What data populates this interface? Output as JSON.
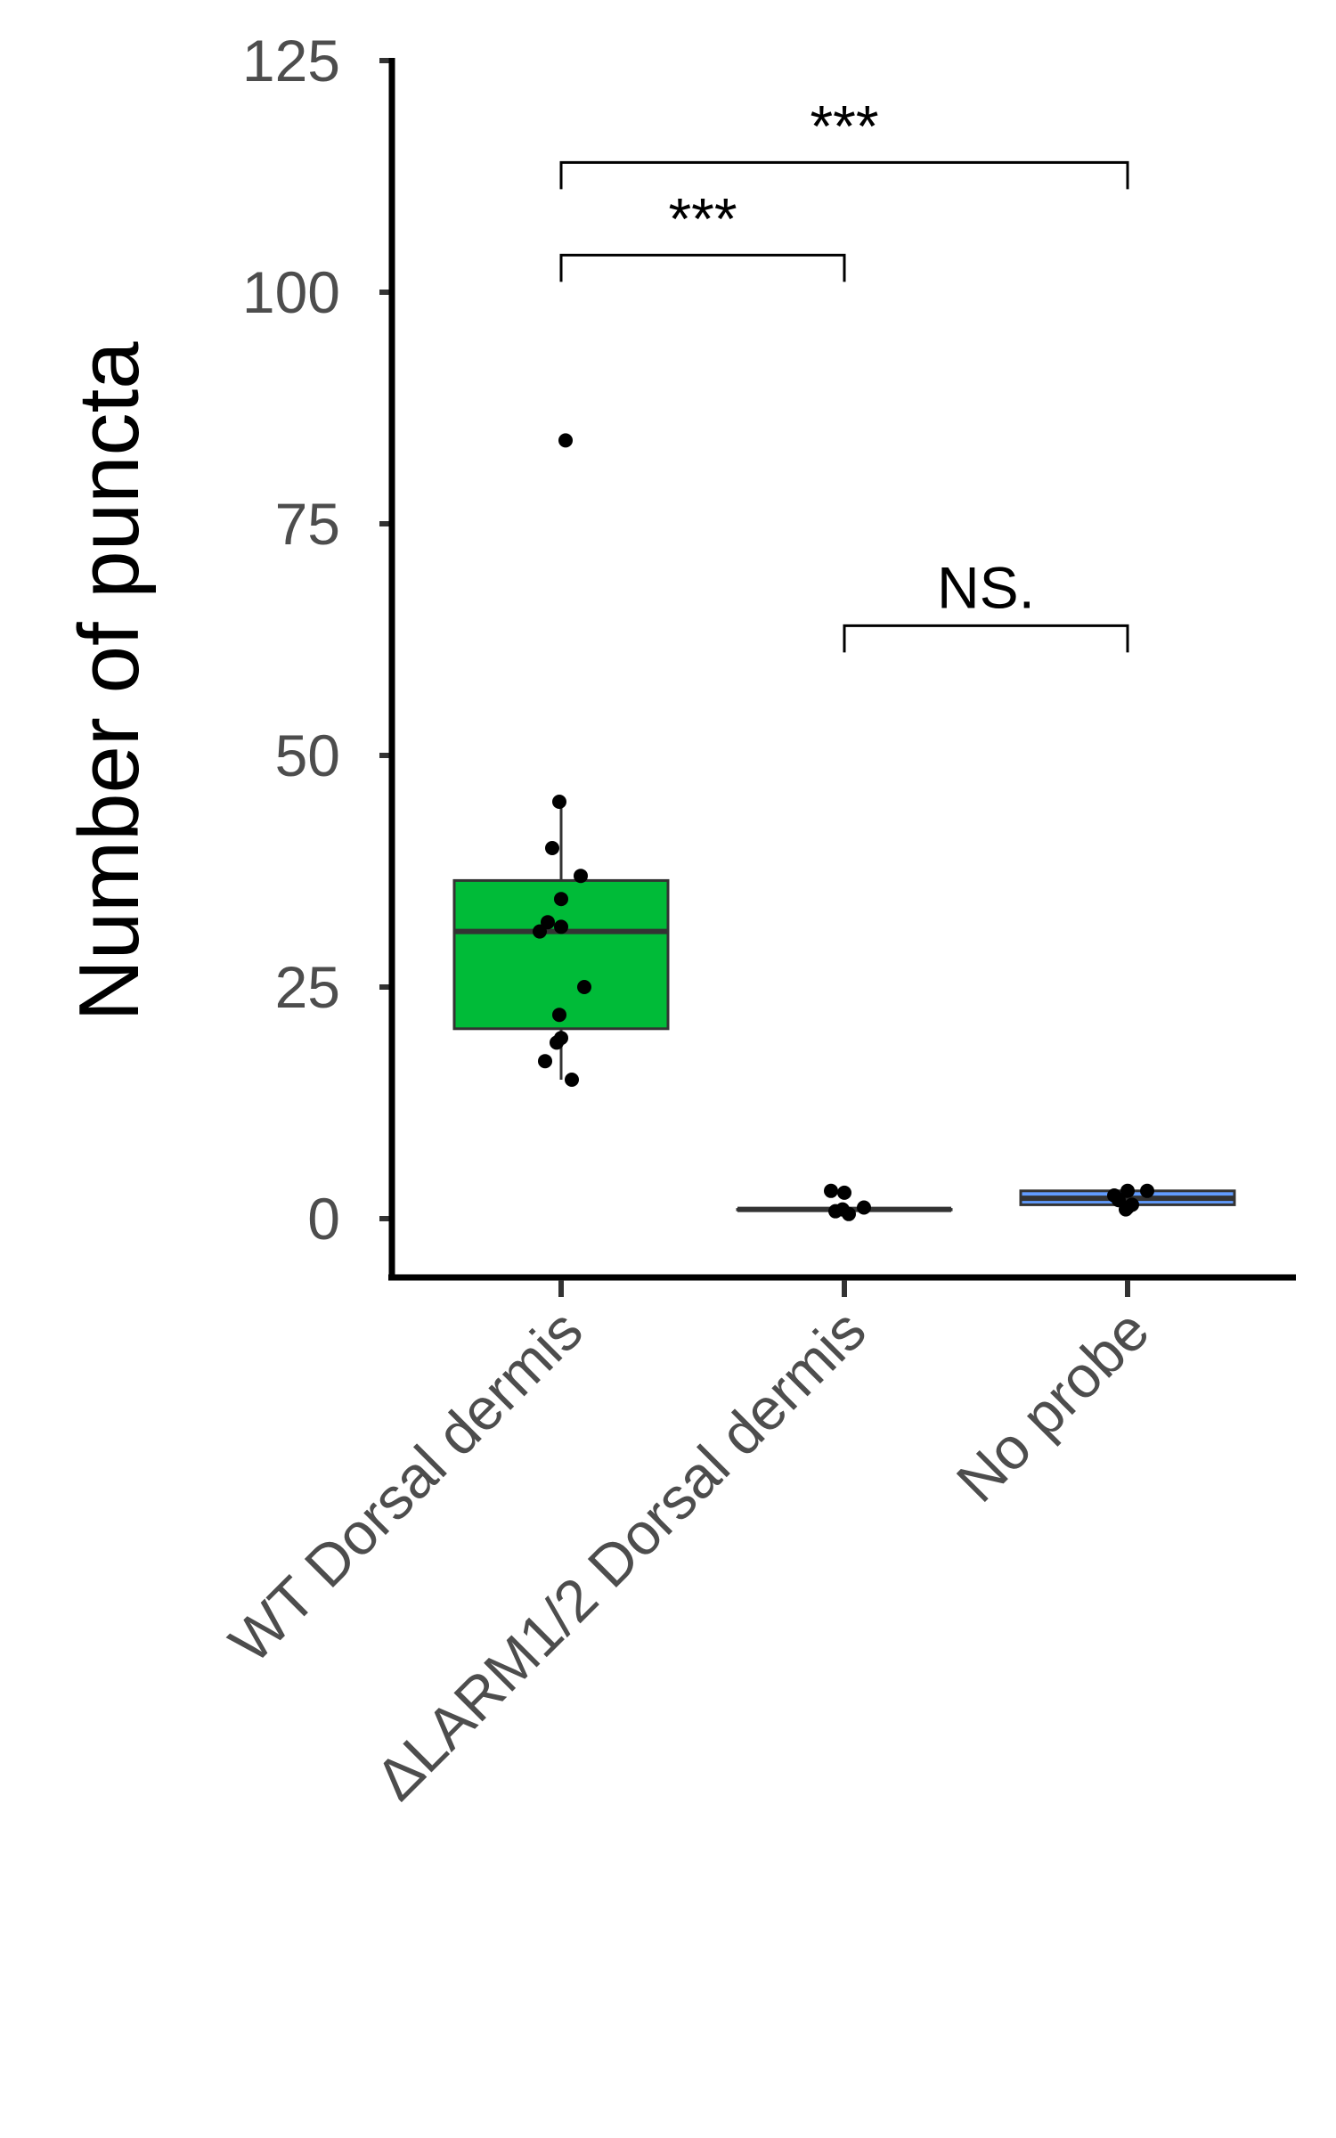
{
  "chart_data": {
    "type": "box",
    "ylabel": "Number of puncta",
    "xlabel": "",
    "ylim": [
      -6,
      125
    ],
    "yticks": [
      0,
      25,
      50,
      75,
      100,
      125
    ],
    "categories": [
      "WT Dorsal dermis",
      "ΔLARM1/2 Dorsal dermis",
      "No probe"
    ],
    "boxes": [
      {
        "category": "WT Dorsal dermis",
        "min": 15,
        "q1": 20.5,
        "median": 31,
        "q3": 36.5,
        "max": 45,
        "color": "#00bb38",
        "points": [
          84,
          45,
          40,
          37,
          34.5,
          32,
          31.5,
          31,
          25,
          22,
          19.5,
          19,
          17,
          15
        ]
      },
      {
        "category": "ΔLARM1/2 Dorsal dermis",
        "min": 1,
        "q1": 1,
        "median": 1,
        "q3": 1,
        "max": 1,
        "color": "#f8766d",
        "points": [
          0.5,
          1,
          0.8,
          1.2,
          2.8,
          3
        ]
      },
      {
        "category": "No probe",
        "min": 1.5,
        "q1": 1.5,
        "median": 2.2,
        "q3": 3,
        "max": 3,
        "color": "#619cff",
        "points": [
          1.5,
          1,
          2,
          3,
          3,
          2.5,
          1.2
        ]
      }
    ],
    "comparisons": [
      {
        "from": 0,
        "to": 1,
        "label": "***",
        "y": 104
      },
      {
        "from": 0,
        "to": 2,
        "label": "***",
        "y": 114
      },
      {
        "from": 1,
        "to": 2,
        "label": "NS.",
        "y": 64
      }
    ],
    "grid": false,
    "legend": "none"
  }
}
